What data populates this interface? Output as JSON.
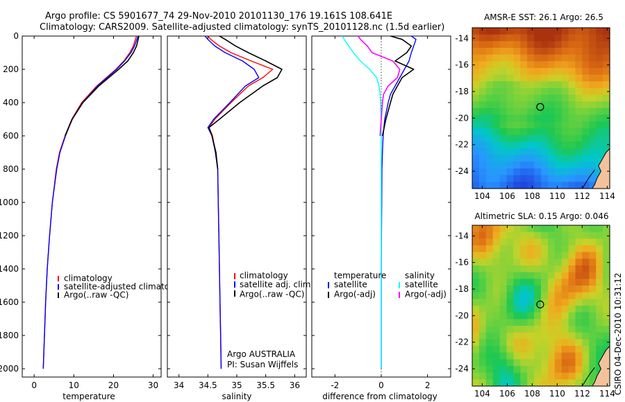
{
  "header": {
    "line1": "Argo profile: CS 5901677_74 29-Nov-2010 20101130_176 19.161S 108.641E",
    "line2": "Climatology: CARS2009. Satellite-adjusted climatology: synTS_20101128.nc (1.5d earlier)"
  },
  "side_stamp": "CSIRO 04-Dec-2010 10:31:12",
  "colors": {
    "climatology": "#ff0000",
    "satellite": "#0000ff",
    "argo": "#000000",
    "diff_satellite_temp": "#0000ff",
    "diff_satellite_sal": "#00ffff",
    "diff_argo_sal": "#ff00ff",
    "land": "#f4c29a"
  },
  "chart_data": [
    {
      "type": "line",
      "xlabel": "temperature",
      "ylim": [
        2050,
        0
      ],
      "xlim": [
        -3,
        32
      ],
      "xticks": [
        "0",
        "10",
        "20",
        "30"
      ],
      "yticks": [
        "0",
        "200",
        "400",
        "600",
        "800",
        "1000",
        "1200",
        "1400",
        "1600",
        "1800",
        "2000"
      ],
      "depth": [
        0,
        20,
        60,
        100,
        150,
        200,
        250,
        300,
        400,
        500,
        600,
        700,
        800,
        1000,
        1200,
        1400,
        1600,
        1800,
        2000
      ],
      "series": [
        {
          "name": "climatology",
          "color": "#ff0000",
          "values": [
            25.8,
            25.5,
            25.0,
            24.1,
            22.6,
            20.6,
            18.2,
            15.8,
            12.0,
            9.5,
            7.8,
            6.4,
            5.6,
            4.6,
            3.9,
            3.3,
            2.9,
            2.6,
            2.3
          ]
        },
        {
          "name": "satellite-adjusted climatology",
          "color": "#0000ff",
          "values": [
            26.2,
            25.9,
            25.3,
            24.4,
            22.8,
            20.8,
            18.4,
            16.0,
            12.2,
            9.6,
            7.9,
            6.5,
            5.7,
            4.6,
            3.9,
            3.3,
            2.9,
            2.6,
            2.3
          ]
        },
        {
          "name": "Argo(..raw -QC)",
          "color": "#000000",
          "values": [
            26.4,
            26.2,
            25.8,
            25.0,
            23.6,
            21.3,
            18.8,
            16.3,
            12.3,
            9.6,
            7.8,
            null,
            null,
            null,
            null,
            null,
            null,
            null,
            null
          ]
        }
      ],
      "legend": [
        "climatology",
        "satellite-adjusted climatology",
        "Argo(..raw -QC)"
      ]
    },
    {
      "type": "line",
      "xlabel": "salinity",
      "ylim": [
        2050,
        0
      ],
      "xlim": [
        33.8,
        36.2
      ],
      "xticks": [
        "34",
        "34.5",
        "35",
        "35.5",
        "36"
      ],
      "depth": [
        0,
        20,
        60,
        100,
        150,
        200,
        250,
        300,
        400,
        500,
        550,
        600,
        700,
        800,
        1000,
        1200,
        1400,
        1600,
        1800,
        2000
      ],
      "series": [
        {
          "name": "climatology",
          "color": "#ff0000",
          "values": [
            34.5,
            34.55,
            34.7,
            34.9,
            35.25,
            35.62,
            35.45,
            35.2,
            34.9,
            34.62,
            34.52,
            34.58,
            34.63,
            34.67,
            34.68,
            34.69,
            34.7,
            34.71,
            34.72,
            34.73
          ]
        },
        {
          "name": "satellite adj. clim.",
          "color": "#0000ff",
          "values": [
            34.45,
            34.5,
            34.62,
            34.8,
            35.1,
            35.3,
            35.38,
            35.15,
            34.88,
            34.6,
            34.5,
            34.57,
            34.63,
            34.67,
            34.68,
            34.69,
            34.7,
            34.71,
            34.72,
            34.73
          ]
        },
        {
          "name": "Argo(..raw -QC)",
          "color": "#000000",
          "values": [
            34.7,
            34.8,
            34.98,
            35.2,
            35.5,
            35.78,
            35.7,
            35.45,
            35.05,
            34.7,
            34.52,
            34.57,
            34.64,
            34.67,
            null,
            null,
            null,
            null,
            null,
            null
          ]
        }
      ],
      "legend": [
        "climatology",
        "satellite adj. clim.",
        "Argo(..raw -QC)"
      ],
      "annotation": [
        "Argo AUSTRALIA",
        "PI: Susan Wijffels"
      ]
    },
    {
      "type": "line",
      "xlabel": "difference from climatology",
      "ylim": [
        2050,
        0
      ],
      "xlim": [
        -3,
        3
      ],
      "xticks": [
        "-2",
        "0",
        "2"
      ],
      "depth": [
        0,
        20,
        60,
        100,
        150,
        200,
        250,
        300,
        350,
        400,
        500,
        600,
        700,
        800,
        1000,
        1200,
        1400,
        1600,
        1800,
        2000
      ],
      "series": [
        {
          "name": "temperature satellite",
          "color": "#0000ff",
          "values": [
            1.3,
            1.5,
            1.4,
            1.3,
            1.2,
            1.0,
            0.8,
            0.6,
            0.4,
            0.3,
            0.15,
            0.08,
            0.05,
            0.03,
            0.02,
            0.01,
            0.0,
            0.0,
            0.0,
            0.0
          ]
        },
        {
          "name": "temperature Argo(-adj)",
          "color": "#000000",
          "values": [
            0.4,
            0.9,
            1.3,
            1.1,
            0.6,
            1.4,
            0.9,
            0.7,
            0.5,
            0.4,
            0.2,
            0.05,
            null,
            null,
            null,
            null,
            null,
            null,
            null,
            null
          ]
        },
        {
          "name": "salinity satellite",
          "color": "#00ffff",
          "values": [
            -1.7,
            -1.6,
            -1.4,
            -1.2,
            -0.9,
            -0.5,
            -0.2,
            -0.1,
            -0.05,
            -0.03,
            -0.01,
            0.0,
            0.0,
            0.0,
            0.0,
            0.0,
            0.0,
            0.0,
            0.0,
            0.0
          ]
        },
        {
          "name": "salinity Argo(-adj)",
          "color": "#ff00ff",
          "values": [
            -1.0,
            -0.9,
            -0.6,
            -0.4,
            0.5,
            0.8,
            0.7,
            0.3,
            0.1,
            0.05,
            0.0,
            -0.05,
            null,
            null,
            null,
            null,
            null,
            null,
            null,
            null
          ]
        }
      ],
      "legend_headers": [
        "temperature",
        "salinity"
      ],
      "legend": [
        [
          "satellite",
          "Argo(-adj)"
        ],
        [
          "satellite",
          "Argo(-adj)"
        ]
      ]
    },
    {
      "type": "heatmap",
      "title": "AMSR-E SST: 26.1 Argo: 26.5",
      "xticks": [
        "104",
        "106",
        "108",
        "110",
        "112",
        "114"
      ],
      "yticks": [
        "-14",
        "-16",
        "-18",
        "-20",
        "-22",
        "-24"
      ],
      "xlim": [
        103.2,
        114.2
      ],
      "ylim": [
        -25.3,
        -13.2
      ],
      "marker": {
        "lon": 108.64,
        "lat": -19.16
      }
    },
    {
      "type": "heatmap",
      "title": "Altimetric SLA: 0.15 Argo: 0.046",
      "xticks": [
        "104",
        "106",
        "108",
        "110",
        "112",
        "114"
      ],
      "yticks": [
        "-14",
        "-16",
        "-18",
        "-20",
        "-22",
        "-24"
      ],
      "xlim": [
        103.2,
        114.2
      ],
      "ylim": [
        -25.3,
        -13.2
      ],
      "marker": {
        "lon": 108.64,
        "lat": -19.16
      }
    }
  ]
}
